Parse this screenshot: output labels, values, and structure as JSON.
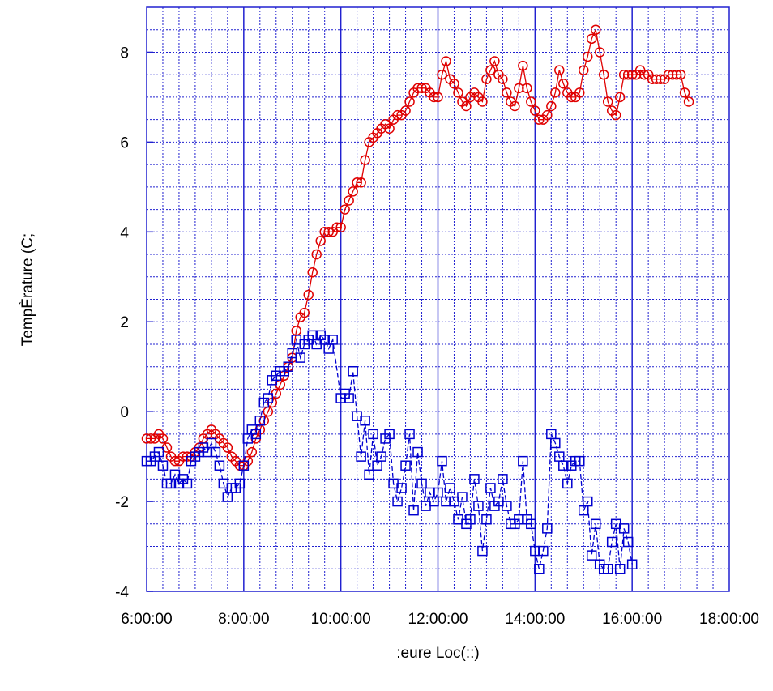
{
  "chart_data": {
    "type": "line",
    "title": "",
    "xlabel": ":eure Loc(::)",
    "ylabel": "TempÈrature (C;",
    "xlim": [
      "6:00:00",
      "18:00:00"
    ],
    "ylim": [
      -4,
      9
    ],
    "x_ticks": [
      "6:00:00",
      "8:00:00",
      "10:00:00",
      "12:00:00",
      "14:00:00",
      "16:00:00",
      "18:00:00"
    ],
    "y_ticks": [
      "-4",
      "-2",
      "0",
      "2",
      "4",
      "6",
      "8"
    ],
    "grid": true,
    "legend": "none",
    "series": [
      {
        "color": "#e00000",
        "marker": "circle",
        "line": "solid",
        "points": [
          [
            "6:00:00",
            -0.6
          ],
          [
            "6:05:00",
            -0.6
          ],
          [
            "6:10:00",
            -0.6
          ],
          [
            "6:15:00",
            -0.5
          ],
          [
            "6:20:00",
            -0.6
          ],
          [
            "6:25:00",
            -0.8
          ],
          [
            "6:30:00",
            -1.0
          ],
          [
            "6:35:00",
            -1.1
          ],
          [
            "6:40:00",
            -1.1
          ],
          [
            "6:45:00",
            -1.0
          ],
          [
            "6:50:00",
            -1.0
          ],
          [
            "6:55:00",
            -1.0
          ],
          [
            "7:00:00",
            -0.9
          ],
          [
            "7:05:00",
            -0.8
          ],
          [
            "7:10:00",
            -0.6
          ],
          [
            "7:15:00",
            -0.5
          ],
          [
            "7:20:00",
            -0.4
          ],
          [
            "7:25:00",
            -0.5
          ],
          [
            "7:30:00",
            -0.6
          ],
          [
            "7:35:00",
            -0.7
          ],
          [
            "7:40:00",
            -0.8
          ],
          [
            "7:45:00",
            -1.0
          ],
          [
            "7:50:00",
            -1.1
          ],
          [
            "7:55:00",
            -1.2
          ],
          [
            "8:00:00",
            -1.2
          ],
          [
            "8:05:00",
            -1.1
          ],
          [
            "8:10:00",
            -0.9
          ],
          [
            "8:15:00",
            -0.6
          ],
          [
            "8:20:00",
            -0.4
          ],
          [
            "8:25:00",
            -0.2
          ],
          [
            "8:30:00",
            0.0
          ],
          [
            "8:35:00",
            0.2
          ],
          [
            "8:40:00",
            0.4
          ],
          [
            "8:45:00",
            0.6
          ],
          [
            "8:50:00",
            0.8
          ],
          [
            "8:55:00",
            1.0
          ],
          [
            "9:00:00",
            1.2
          ],
          [
            "9:05:00",
            1.8
          ],
          [
            "9:10:00",
            2.1
          ],
          [
            "9:15:00",
            2.2
          ],
          [
            "9:20:00",
            2.6
          ],
          [
            "9:25:00",
            3.1
          ],
          [
            "9:30:00",
            3.5
          ],
          [
            "9:35:00",
            3.8
          ],
          [
            "9:40:00",
            4.0
          ],
          [
            "9:45:00",
            4.0
          ],
          [
            "9:50:00",
            4.0
          ],
          [
            "9:55:00",
            4.1
          ],
          [
            "10:00:00",
            4.1
          ],
          [
            "10:05:00",
            4.5
          ],
          [
            "10:10:00",
            4.7
          ],
          [
            "10:15:00",
            4.9
          ],
          [
            "10:20:00",
            5.1
          ],
          [
            "10:25:00",
            5.1
          ],
          [
            "10:30:00",
            5.6
          ],
          [
            "10:35:00",
            6.0
          ],
          [
            "10:40:00",
            6.1
          ],
          [
            "10:45:00",
            6.2
          ],
          [
            "10:50:00",
            6.3
          ],
          [
            "10:55:00",
            6.4
          ],
          [
            "11:00:00",
            6.3
          ],
          [
            "11:05:00",
            6.5
          ],
          [
            "11:10:00",
            6.6
          ],
          [
            "11:15:00",
            6.6
          ],
          [
            "11:20:00",
            6.7
          ],
          [
            "11:25:00",
            6.9
          ],
          [
            "11:30:00",
            7.1
          ],
          [
            "11:35:00",
            7.2
          ],
          [
            "11:40:00",
            7.2
          ],
          [
            "11:45:00",
            7.2
          ],
          [
            "11:50:00",
            7.1
          ],
          [
            "11:55:00",
            7.0
          ],
          [
            "12:00:00",
            7.0
          ],
          [
            "12:05:00",
            7.5
          ],
          [
            "12:10:00",
            7.8
          ],
          [
            "12:15:00",
            7.4
          ],
          [
            "12:20:00",
            7.3
          ],
          [
            "12:25:00",
            7.1
          ],
          [
            "12:30:00",
            6.9
          ],
          [
            "12:35:00",
            6.8
          ],
          [
            "12:40:00",
            7.0
          ],
          [
            "12:45:00",
            7.1
          ],
          [
            "12:50:00",
            7.0
          ],
          [
            "12:55:00",
            6.9
          ],
          [
            "13:00:00",
            7.4
          ],
          [
            "13:05:00",
            7.6
          ],
          [
            "13:10:00",
            7.8
          ],
          [
            "13:15:00",
            7.5
          ],
          [
            "13:20:00",
            7.4
          ],
          [
            "13:25:00",
            7.1
          ],
          [
            "13:30:00",
            6.9
          ],
          [
            "13:35:00",
            6.8
          ],
          [
            "13:40:00",
            7.2
          ],
          [
            "13:45:00",
            7.7
          ],
          [
            "13:50:00",
            7.2
          ],
          [
            "13:55:00",
            6.9
          ],
          [
            "14:00:00",
            6.7
          ],
          [
            "14:05:00",
            6.5
          ],
          [
            "14:10:00",
            6.5
          ],
          [
            "14:15:00",
            6.6
          ],
          [
            "14:20:00",
            6.8
          ],
          [
            "14:25:00",
            7.1
          ],
          [
            "14:30:00",
            7.6
          ],
          [
            "14:35:00",
            7.3
          ],
          [
            "14:40:00",
            7.1
          ],
          [
            "14:45:00",
            7.0
          ],
          [
            "14:50:00",
            7.0
          ],
          [
            "14:55:00",
            7.1
          ],
          [
            "15:00:00",
            7.6
          ],
          [
            "15:05:00",
            7.9
          ],
          [
            "15:10:00",
            8.3
          ],
          [
            "15:15:00",
            8.5
          ],
          [
            "15:20:00",
            8.0
          ],
          [
            "15:25:00",
            7.5
          ],
          [
            "15:30:00",
            6.9
          ],
          [
            "15:35:00",
            6.7
          ],
          [
            "15:40:00",
            6.6
          ],
          [
            "15:45:00",
            7.0
          ],
          [
            "15:50:00",
            7.5
          ],
          [
            "15:55:00",
            7.5
          ],
          [
            "16:00:00",
            7.5
          ],
          [
            "16:05:00",
            7.5
          ],
          [
            "16:10:00",
            7.6
          ],
          [
            "16:15:00",
            7.5
          ],
          [
            "16:20:00",
            7.5
          ],
          [
            "16:25:00",
            7.4
          ],
          [
            "16:30:00",
            7.4
          ],
          [
            "16:35:00",
            7.4
          ],
          [
            "16:40:00",
            7.4
          ],
          [
            "16:45:00",
            7.5
          ],
          [
            "16:50:00",
            7.5
          ],
          [
            "16:55:00",
            7.5
          ],
          [
            "17:00:00",
            7.5
          ],
          [
            "17:05:00",
            7.1
          ],
          [
            "17:10:00",
            6.9
          ]
        ]
      },
      {
        "color": "#0000d0",
        "marker": "square",
        "line": "dashed",
        "points": [
          [
            "6:00:00",
            -1.1
          ],
          [
            "6:05:00",
            -1.1
          ],
          [
            "6:10:00",
            -1.0
          ],
          [
            "6:15:00",
            -0.9
          ],
          [
            "6:20:00",
            -1.2
          ],
          [
            "6:25:00",
            -1.6
          ],
          [
            "6:30:00",
            -1.6
          ],
          [
            "6:35:00",
            -1.4
          ],
          [
            "6:40:00",
            -1.6
          ],
          [
            "6:45:00",
            -1.5
          ],
          [
            "6:50:00",
            -1.6
          ],
          [
            "6:55:00",
            -1.1
          ],
          [
            "7:00:00",
            -1.0
          ],
          [
            "7:05:00",
            -0.9
          ],
          [
            "7:10:00",
            -0.8
          ],
          [
            "7:15:00",
            -0.9
          ],
          [
            "7:20:00",
            -0.7
          ],
          [
            "7:25:00",
            -0.9
          ],
          [
            "7:30:00",
            -1.2
          ],
          [
            "7:35:00",
            -1.6
          ],
          [
            "7:40:00",
            -1.9
          ],
          [
            "7:45:00",
            -1.7
          ],
          [
            "7:50:00",
            -1.7
          ],
          [
            "7:55:00",
            -1.6
          ],
          [
            "8:00:00",
            -1.2
          ],
          [
            "8:05:00",
            -0.6
          ],
          [
            "8:10:00",
            -0.4
          ],
          [
            "8:15:00",
            -0.5
          ],
          [
            "8:20:00",
            -0.2
          ],
          [
            "8:25:00",
            0.2
          ],
          [
            "8:30:00",
            0.3
          ],
          [
            "8:35:00",
            0.7
          ],
          [
            "8:40:00",
            0.8
          ],
          [
            "8:45:00",
            0.9
          ],
          [
            "8:50:00",
            0.9
          ],
          [
            "8:55:00",
            1.0
          ],
          [
            "9:00:00",
            1.3
          ],
          [
            "9:05:00",
            1.6
          ],
          [
            "9:10:00",
            1.2
          ],
          [
            "9:15:00",
            1.5
          ],
          [
            "9:20:00",
            1.6
          ],
          [
            "9:25:00",
            1.7
          ],
          [
            "9:30:00",
            1.5
          ],
          [
            "9:35:00",
            1.7
          ],
          [
            "9:40:00",
            1.6
          ],
          [
            "9:45:00",
            1.4
          ],
          [
            "9:50:00",
            1.6
          ],
          [
            "10:00:00",
            0.3
          ],
          [
            "10:05:00",
            0.4
          ],
          [
            "10:10:00",
            0.3
          ],
          [
            "10:15:00",
            0.9
          ],
          [
            "10:20:00",
            -0.1
          ],
          [
            "10:25:00",
            -1.0
          ],
          [
            "10:30:00",
            -0.2
          ],
          [
            "10:35:00",
            -1.4
          ],
          [
            "10:40:00",
            -0.5
          ],
          [
            "10:45:00",
            -1.2
          ],
          [
            "10:50:00",
            -1.0
          ],
          [
            "10:55:00",
            -0.6
          ],
          [
            "11:00:00",
            -0.5
          ],
          [
            "11:05:00",
            -1.6
          ],
          [
            "11:10:00",
            -2.0
          ],
          [
            "11:15:00",
            -1.7
          ],
          [
            "11:20:00",
            -1.2
          ],
          [
            "11:25:00",
            -0.5
          ],
          [
            "11:30:00",
            -2.2
          ],
          [
            "11:35:00",
            -0.9
          ],
          [
            "11:40:00",
            -1.6
          ],
          [
            "11:45:00",
            -2.1
          ],
          [
            "11:50:00",
            -1.8
          ],
          [
            "11:55:00",
            -2.0
          ],
          [
            "12:00:00",
            -1.8
          ],
          [
            "12:05:00",
            -1.1
          ],
          [
            "12:10:00",
            -2.0
          ],
          [
            "12:15:00",
            -1.7
          ],
          [
            "12:20:00",
            -2.0
          ],
          [
            "12:25:00",
            -2.4
          ],
          [
            "12:30:00",
            -1.9
          ],
          [
            "12:35:00",
            -2.5
          ],
          [
            "12:40:00",
            -2.4
          ],
          [
            "12:45:00",
            -1.5
          ],
          [
            "12:50:00",
            -2.1
          ],
          [
            "12:55:00",
            -3.1
          ],
          [
            "13:00:00",
            -2.4
          ],
          [
            "13:05:00",
            -1.7
          ],
          [
            "13:10:00",
            -2.1
          ],
          [
            "13:15:00",
            -2.0
          ],
          [
            "13:20:00",
            -1.5
          ],
          [
            "13:25:00",
            -2.1
          ],
          [
            "13:30:00",
            -2.5
          ],
          [
            "13:35:00",
            -2.5
          ],
          [
            "13:40:00",
            -2.4
          ],
          [
            "13:45:00",
            -1.1
          ],
          [
            "13:50:00",
            -2.4
          ],
          [
            "13:55:00",
            -2.5
          ],
          [
            "14:00:00",
            -3.1
          ],
          [
            "14:05:00",
            -3.5
          ],
          [
            "14:10:00",
            -3.1
          ],
          [
            "14:15:00",
            -2.6
          ],
          [
            "14:20:00",
            -0.5
          ],
          [
            "14:25:00",
            -0.7
          ],
          [
            "14:30:00",
            -1.0
          ],
          [
            "14:35:00",
            -1.2
          ],
          [
            "14:40:00",
            -1.6
          ],
          [
            "14:45:00",
            -1.2
          ],
          [
            "14:50:00",
            -1.1
          ],
          [
            "14:55:00",
            -1.1
          ],
          [
            "15:00:00",
            -2.2
          ],
          [
            "15:05:00",
            -2.0
          ],
          [
            "15:10:00",
            -3.2
          ],
          [
            "15:15:00",
            -2.5
          ],
          [
            "15:20:00",
            -3.4
          ],
          [
            "15:25:00",
            -3.5
          ],
          [
            "15:30:00",
            -3.5
          ],
          [
            "15:35:00",
            -2.9
          ],
          [
            "15:40:00",
            -2.5
          ],
          [
            "15:45:00",
            -3.5
          ],
          [
            "15:50:00",
            -2.6
          ],
          [
            "15:55:00",
            -2.9
          ],
          [
            "16:00:00",
            -3.4
          ]
        ]
      }
    ]
  }
}
